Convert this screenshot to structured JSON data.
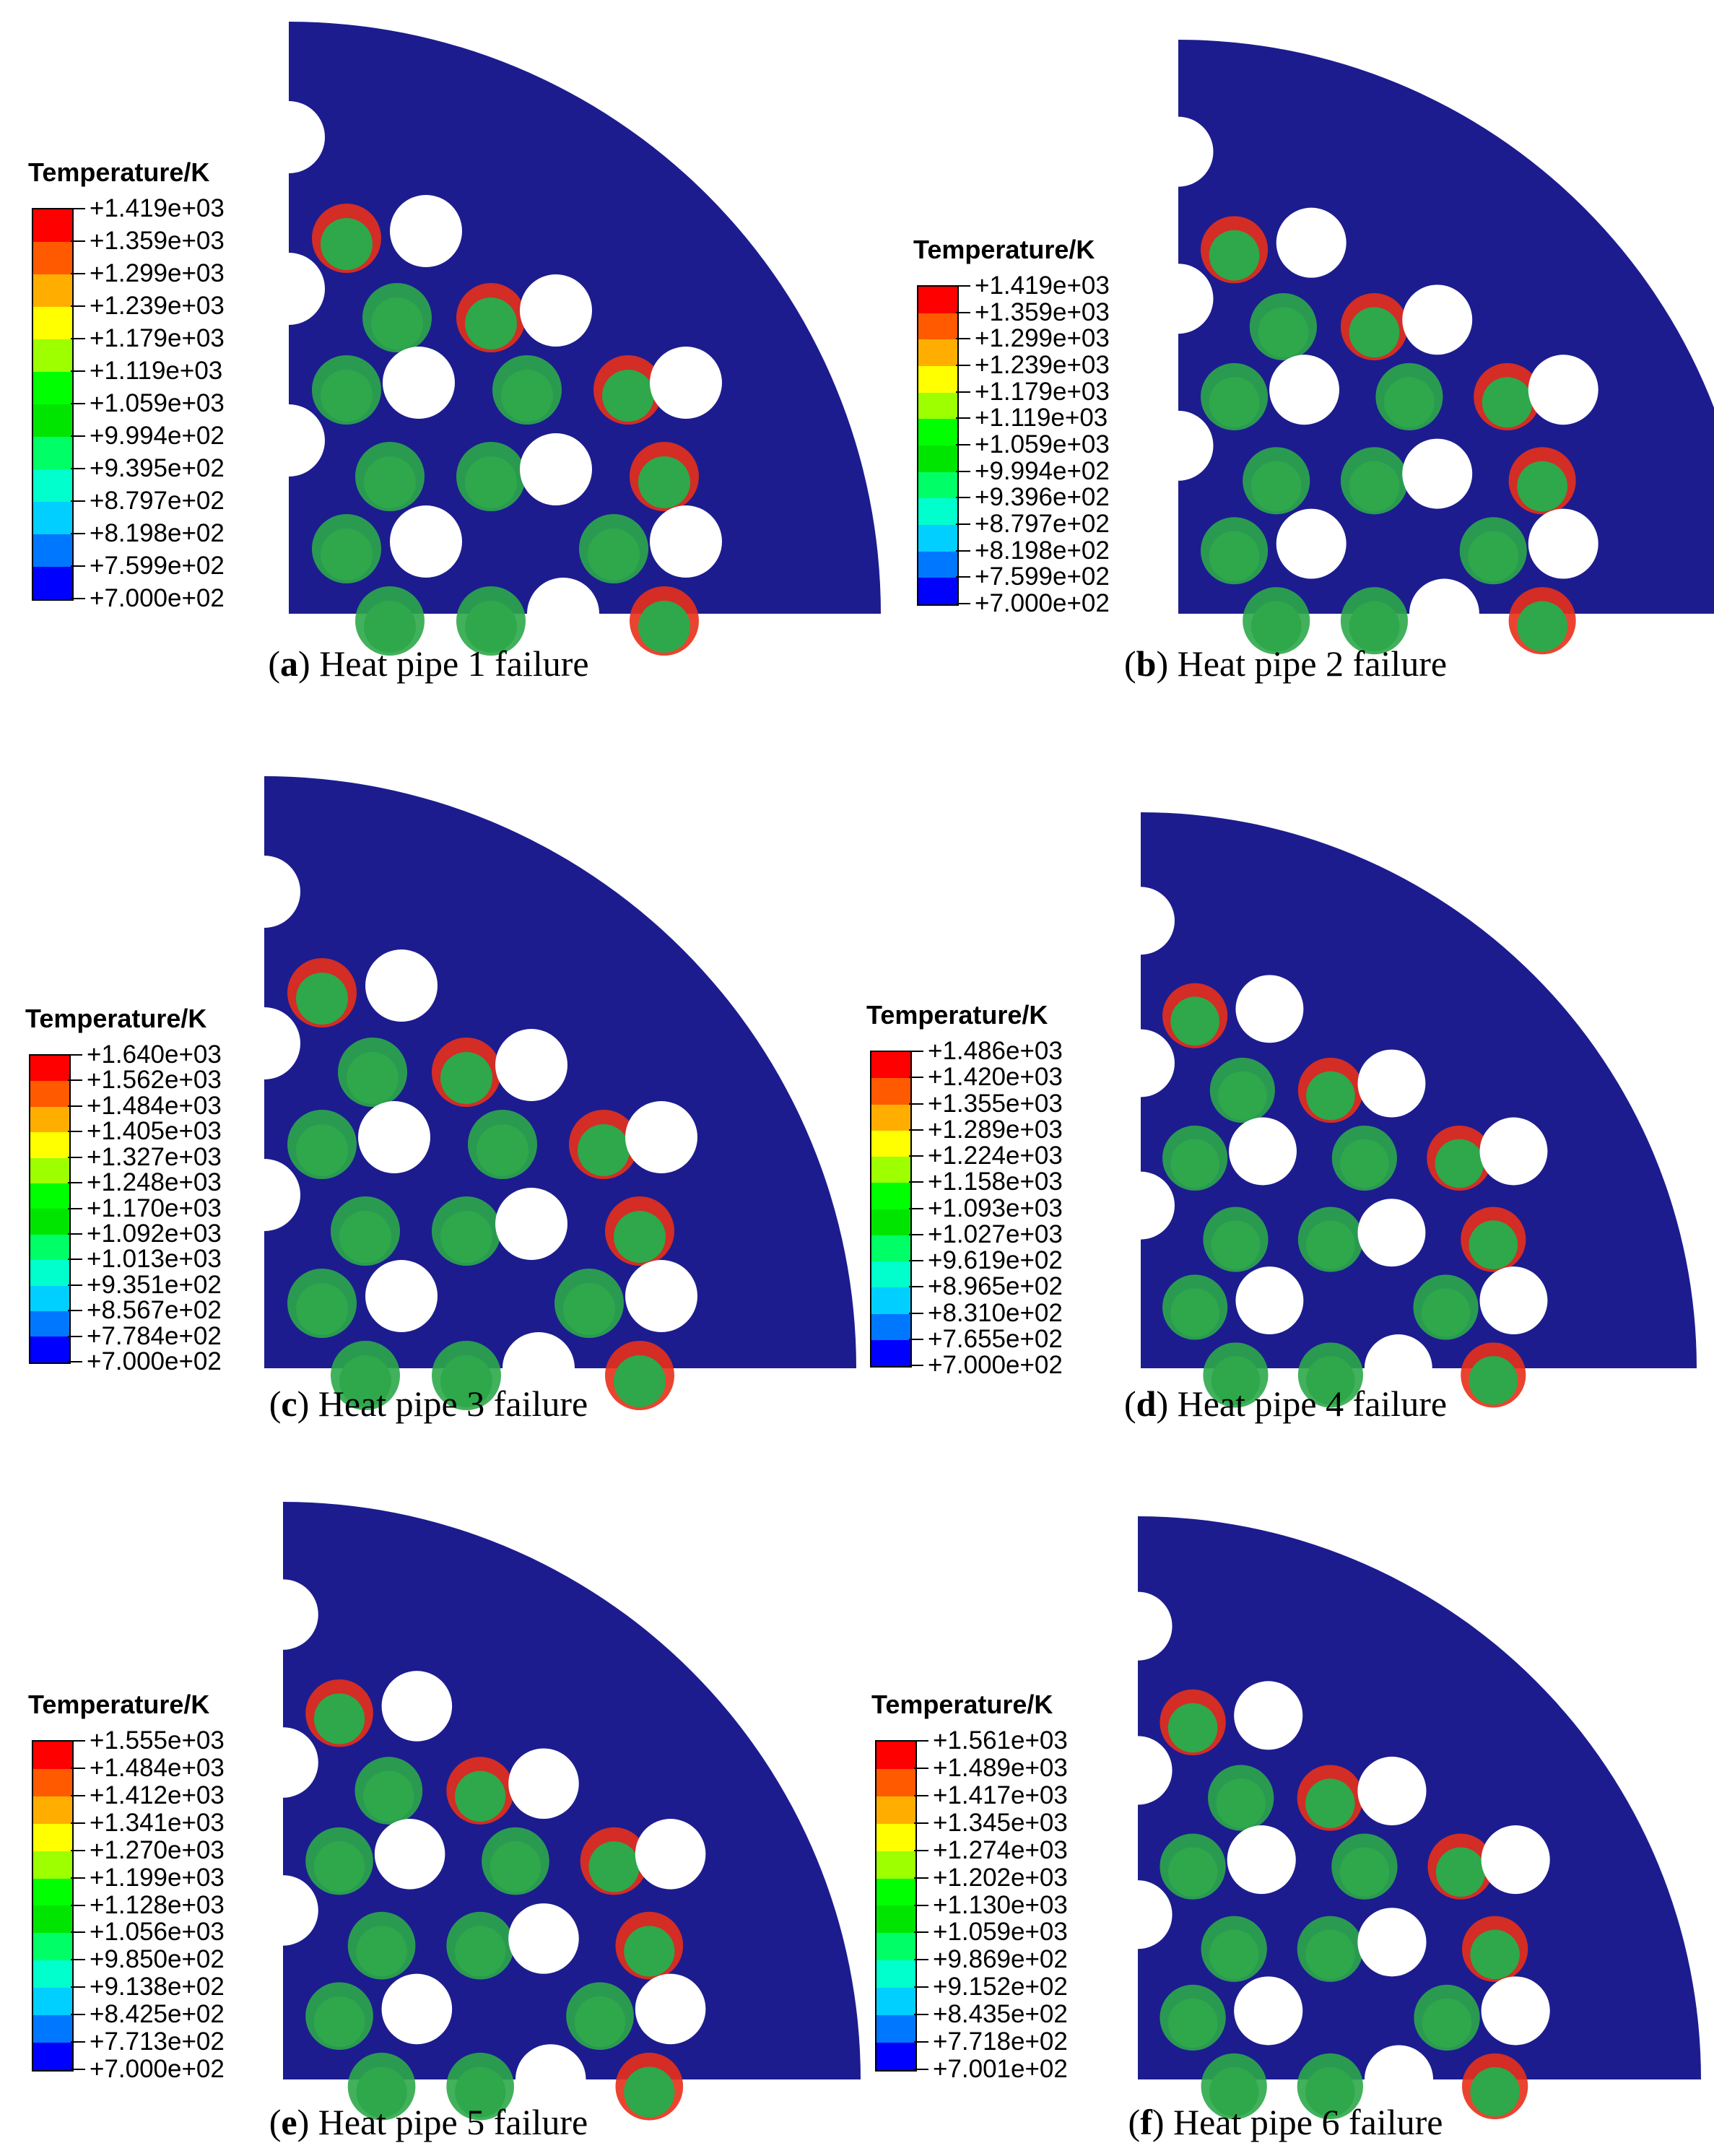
{
  "legend_title": "Temperature/K",
  "legend_colors": [
    "#ff0000",
    "#ff5a00",
    "#ffae00",
    "#ffff00",
    "#9dff00",
    "#00ff00",
    "#00e500",
    "#00ff66",
    "#00ffcc",
    "#00cfff",
    "#0077ff",
    "#0000ff"
  ],
  "colors": {
    "background": "#1c1c8f",
    "hole": "#ffffff",
    "hot": "#e8301a",
    "warm": "#2ea84a",
    "cool": "#2fb07a"
  },
  "panels": [
    {
      "id": "a",
      "caption_letter": "a",
      "caption_text": "Heat pipe 1 failure",
      "legend_values": [
        "+1.419e+03",
        "+1.359e+03",
        "+1.299e+03",
        "+1.239e+03",
        "+1.179e+03",
        "+1.119e+03",
        "+1.059e+03",
        "+9.994e+02",
        "+9.395e+02",
        "+8.797e+02",
        "+8.198e+02",
        "+7.599e+02",
        "+7.000e+02"
      ]
    },
    {
      "id": "b",
      "caption_letter": "b",
      "caption_text": "Heat pipe 2 failure",
      "legend_values": [
        "+1.419e+03",
        "+1.359e+03",
        "+1.299e+03",
        "+1.239e+03",
        "+1.179e+03",
        "+1.119e+03",
        "+1.059e+03",
        "+9.994e+02",
        "+9.396e+02",
        "+8.797e+02",
        "+8.198e+02",
        "+7.599e+02",
        "+7.000e+02"
      ]
    },
    {
      "id": "c",
      "caption_letter": "c",
      "caption_text": "Heat pipe 3 failure",
      "legend_values": [
        "+1.640e+03",
        "+1.562e+03",
        "+1.484e+03",
        "+1.405e+03",
        "+1.327e+03",
        "+1.248e+03",
        "+1.170e+03",
        "+1.092e+03",
        "+1.013e+03",
        "+9.351e+02",
        "+8.567e+02",
        "+7.784e+02",
        "+7.000e+02"
      ]
    },
    {
      "id": "d",
      "caption_letter": "d",
      "caption_text": "Heat pipe 4 failure",
      "legend_values": [
        "+1.486e+03",
        "+1.420e+03",
        "+1.355e+03",
        "+1.289e+03",
        "+1.224e+03",
        "+1.158e+03",
        "+1.093e+03",
        "+1.027e+03",
        "+9.619e+02",
        "+8.965e+02",
        "+8.310e+02",
        "+7.655e+02",
        "+7.000e+02"
      ]
    },
    {
      "id": "e",
      "caption_letter": "e",
      "caption_text": "Heat pipe 5 failure",
      "legend_values": [
        "+1.555e+03",
        "+1.484e+03",
        "+1.412e+03",
        "+1.341e+03",
        "+1.270e+03",
        "+1.199e+03",
        "+1.128e+03",
        "+1.056e+03",
        "+9.850e+02",
        "+9.138e+02",
        "+8.425e+02",
        "+7.713e+02",
        "+7.000e+02"
      ]
    },
    {
      "id": "f",
      "caption_letter": "f",
      "caption_text": "Heat pipe 6 failure",
      "legend_values": [
        "+1.561e+03",
        "+1.489e+03",
        "+1.417e+03",
        "+1.345e+03",
        "+1.274e+03",
        "+1.202e+03",
        "+1.130e+03",
        "+1.059e+03",
        "+9.869e+02",
        "+9.152e+02",
        "+8.435e+02",
        "+7.718e+02",
        "+7.001e+02"
      ]
    }
  ]
}
